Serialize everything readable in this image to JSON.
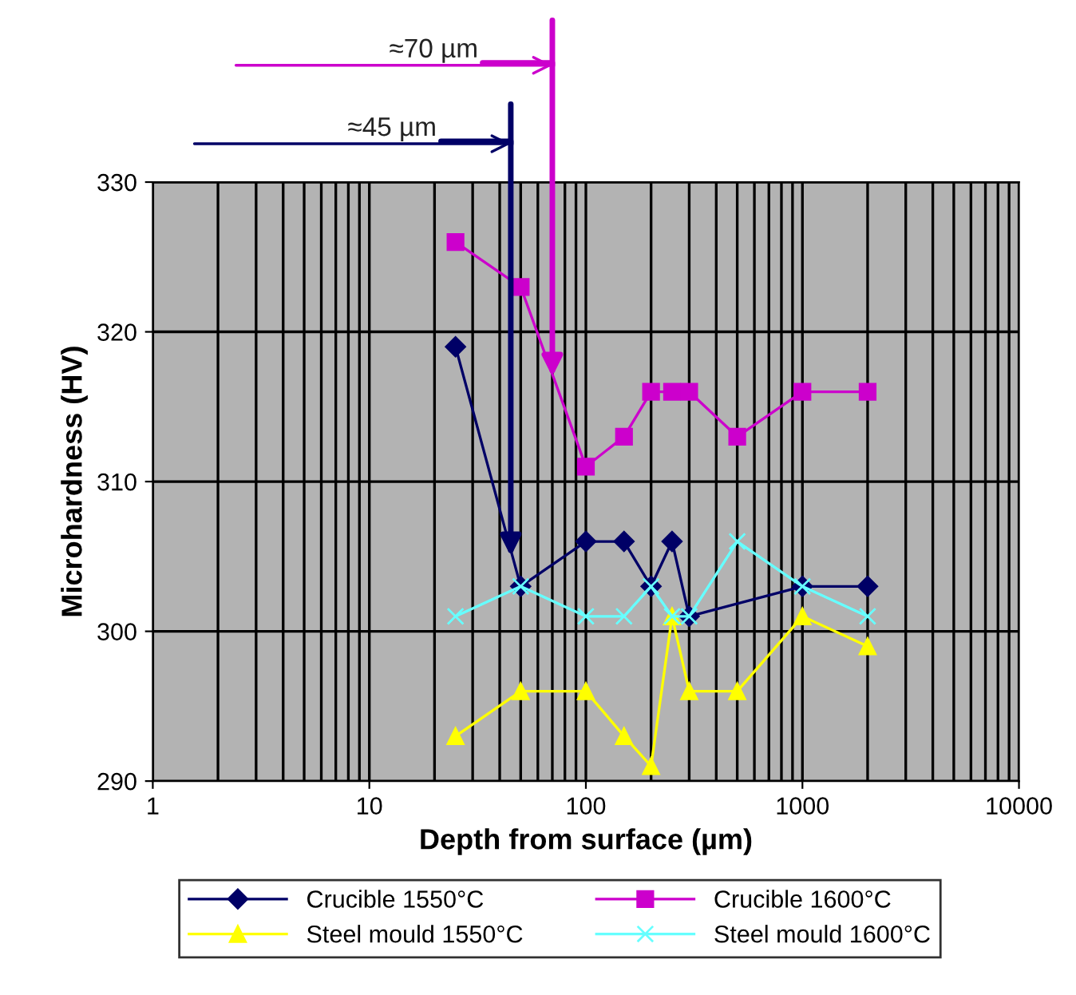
{
  "chart_data": {
    "type": "line",
    "xlabel": "Depth from surface (µm)",
    "ylabel": "Microhardness (HV)",
    "x": [
      25,
      50,
      100,
      150,
      200,
      250,
      300,
      500,
      1000,
      2000
    ],
    "series": [
      {
        "name": "Crucible 1550°C",
        "color": "#000066",
        "marker": "diamond",
        "x": [
          25,
          50,
          100,
          150,
          200,
          250,
          300,
          1000,
          2000
        ],
        "values": [
          319,
          303,
          306,
          306,
          303,
          306,
          301,
          303,
          303
        ]
      },
      {
        "name": "Crucible 1600°C",
        "color": "#cc00cc",
        "marker": "square",
        "values": [
          326,
          323,
          311,
          313,
          316,
          316,
          316,
          313,
          316,
          316
        ]
      },
      {
        "name": "Steel mould 1550°C",
        "color": "#ffff00",
        "marker": "triangle",
        "values": [
          293,
          296,
          296,
          293,
          291,
          301,
          296,
          296,
          301,
          299
        ]
      },
      {
        "name": "Steel mould 1600°C",
        "color": "#66ffff",
        "marker": "cross",
        "values": [
          301,
          303,
          301,
          301,
          303,
          301,
          301,
          306,
          303,
          301
        ]
      }
    ],
    "log": "x",
    "xlim": [
      1,
      10000
    ],
    "xticks": [
      1,
      10,
      100,
      1000,
      10000
    ],
    "ylim": [
      290,
      330
    ],
    "yticks": [
      290,
      300,
      310,
      320,
      330
    ],
    "grid": true,
    "legend": "bottom",
    "line_style": "solid",
    "annotations": [
      {
        "text": "≈45 µm",
        "x": 45,
        "y": 305
      },
      {
        "text": "≈70 µm",
        "x": 70,
        "y": 317
      }
    ]
  }
}
